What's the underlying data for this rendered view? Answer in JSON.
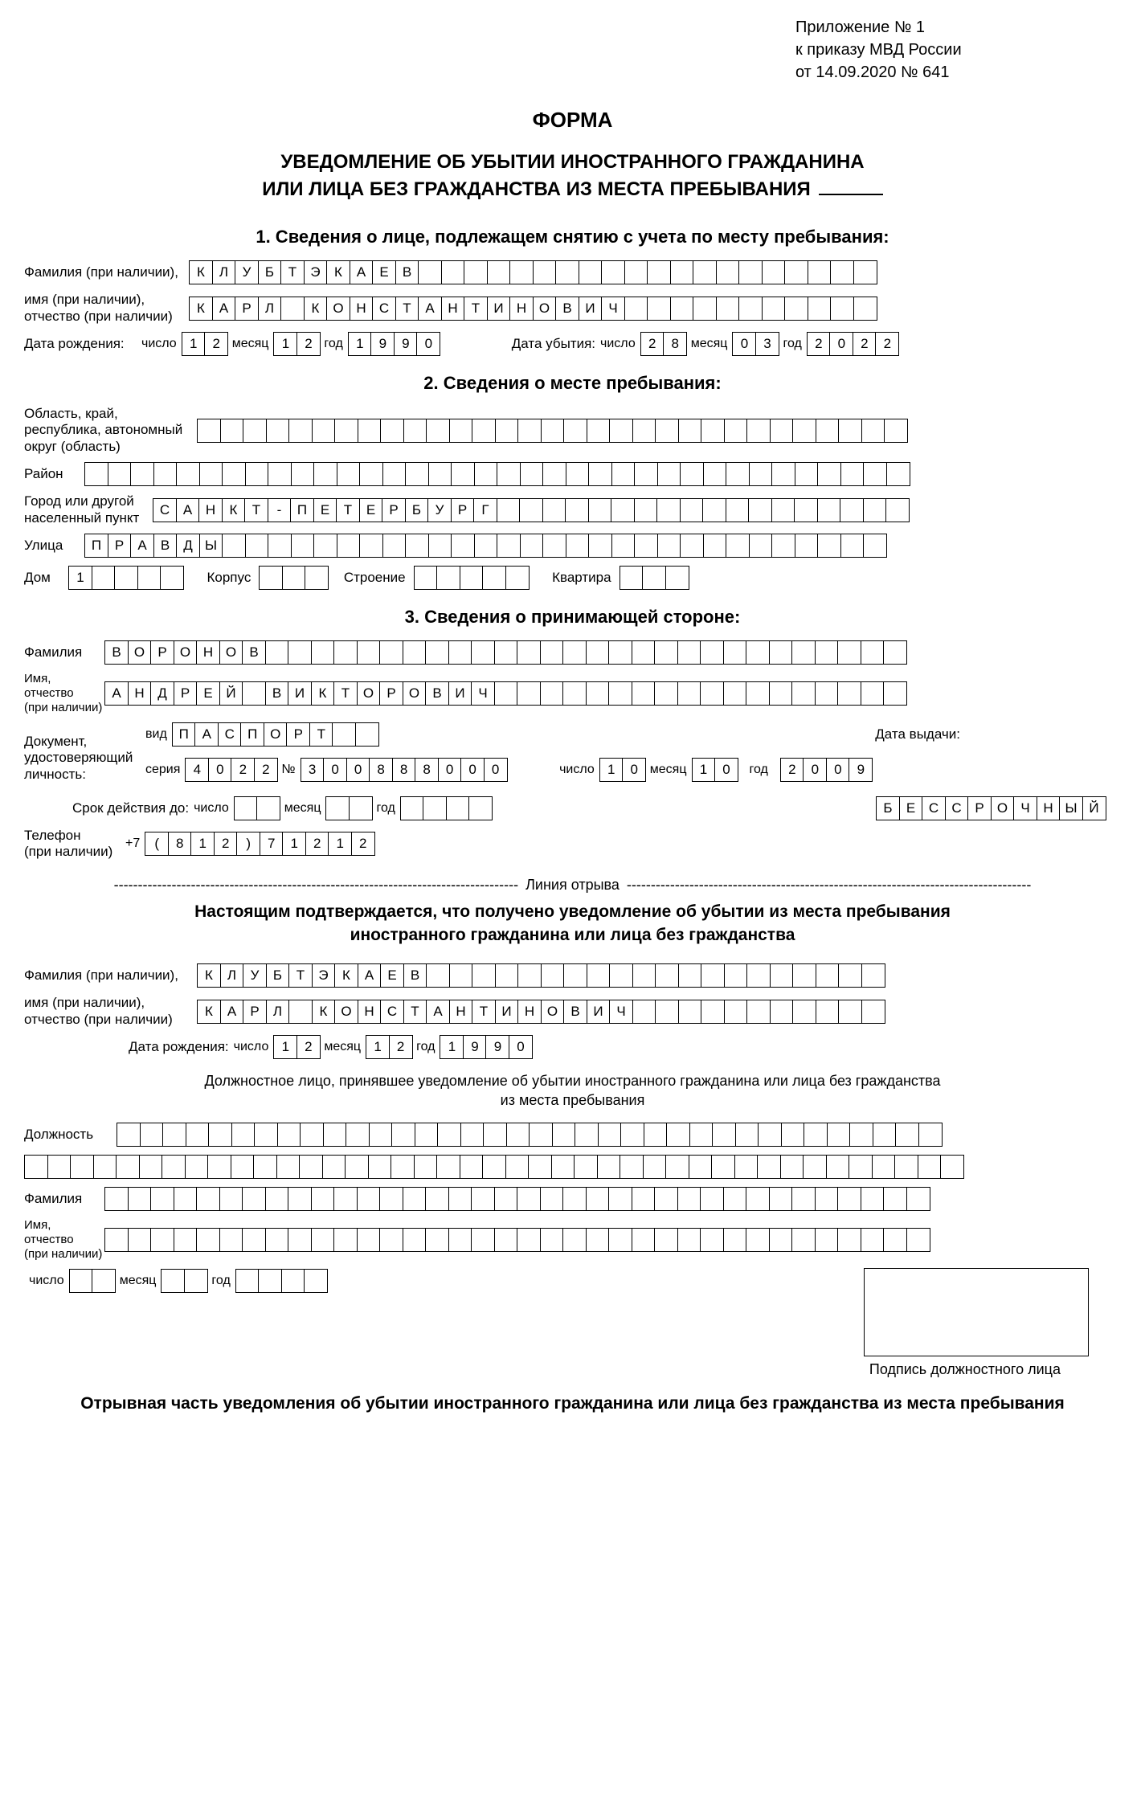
{
  "appendix": {
    "line1": "Приложение № 1",
    "line2": "к приказу МВД России",
    "line3": "от  14.09.2020 № 641"
  },
  "form_word": "ФОРМА",
  "main_title_l1": "УВЕДОМЛЕНИЕ ОБ УБЫТИИ ИНОСТРАННОГО ГРАЖДАНИНА",
  "main_title_l2": "ИЛИ ЛИЦА БЕЗ ГРАЖДАНСТВА ИЗ МЕСТА ПРЕБЫВАНИЯ",
  "section1": "1. Сведения о лице, подлежащем снятию с учета по месту пребывания:",
  "section2": "2. Сведения о месте пребывания:",
  "section3": "3. Сведения о принимающей стороне:",
  "labels": {
    "surname": "Фамилия (при наличии),",
    "name_patr": "имя (при наличии),\nотчество (при наличии)",
    "dob": "Дата рождения:",
    "chislo": "число",
    "mesyats": "месяц",
    "god": "год",
    "departure": "Дата убытия:",
    "region": "Область, край,\nреспублика, автономный\nокруг (область)",
    "rayon": "Район",
    "city": "Город или другой\nнаселенный пункт",
    "street": "Улица",
    "house": "Дом",
    "korpus": "Корпус",
    "stroenie": "Строение",
    "kvartira": "Квартира",
    "host_surname": "Фамилия",
    "host_name": "Имя,\nотчество\n(при наличии)",
    "doc": "Документ,\nудостоверяющий\nличность:",
    "vid": "вид",
    "seria": "серия",
    "num": "№",
    "issue_date": "Дата выдачи:",
    "validity": "Срок действия до:",
    "phone": "Телефон\n(при наличии)",
    "plus7": "+7",
    "position": "Должность",
    "official_surname": "Фамилия",
    "official_name": "Имя,\nотчество\n(при наличии)"
  },
  "person": {
    "surname": "КЛУБТЭКАЕВ",
    "surname_cells": 30,
    "name": "КАРЛ КОНСТАНТИНОВИЧ",
    "name_cells": 30,
    "dob_day": "12",
    "dob_month": "12",
    "dob_year": "1990",
    "dep_day": "28",
    "dep_month": "03",
    "dep_year": "2022"
  },
  "place": {
    "region": "",
    "region_cells": 31,
    "rayon": "",
    "rayon_cells": 36,
    "city": "САНКТ-ПЕТЕРБУРГ",
    "city_cells": 33,
    "street": "ПРАВДЫ",
    "street_cells": 35,
    "house": "1",
    "house_cells": 5,
    "korpus": "",
    "korpus_cells": 3,
    "stroenie": "",
    "stroenie_cells": 5,
    "kvartira": "",
    "kvartira_cells": 3
  },
  "host": {
    "surname": "ВОРОНОВ",
    "surname_cells": 35,
    "name": "АНДРЕЙ ВИКТОРОВИЧ",
    "name_cells": 35,
    "doc_vid": "ПАСПОРТ",
    "doc_vid_cells": 9,
    "doc_seria": "4022",
    "doc_seria_cells": 4,
    "doc_num": "300888000",
    "doc_num_cells": 9,
    "issue_day": "10",
    "issue_month": "10",
    "issue_year": "2009",
    "valid_day": "",
    "valid_month": "",
    "valid_year": "",
    "valid_note": "БЕССРОЧНЫЙ",
    "valid_note_cells": 10,
    "phone": "(812)71212"
  },
  "tear_label": " Линия отрыва ",
  "confirm_l1": "Настоящим подтверждается, что получено уведомление об убытии из места пребывания",
  "confirm_l2": "иностранного гражданина или лица без гражданства",
  "note_l1": "Должностное лицо, принявшее уведомление об убытии иностранного гражданина или лица без гражданства",
  "note_l2": "из места пребывания",
  "official": {
    "position": "",
    "position_cells": 36,
    "position_row2_cells": 41,
    "surname": "",
    "surname_cells": 36,
    "name": "",
    "name_cells": 36,
    "day": "",
    "month": "",
    "year": ""
  },
  "sig_caption": "Подпись должностного лица",
  "bottom_title": "Отрывная часть уведомления об убытии иностранного гражданина или лица без гражданства из места пребывания"
}
